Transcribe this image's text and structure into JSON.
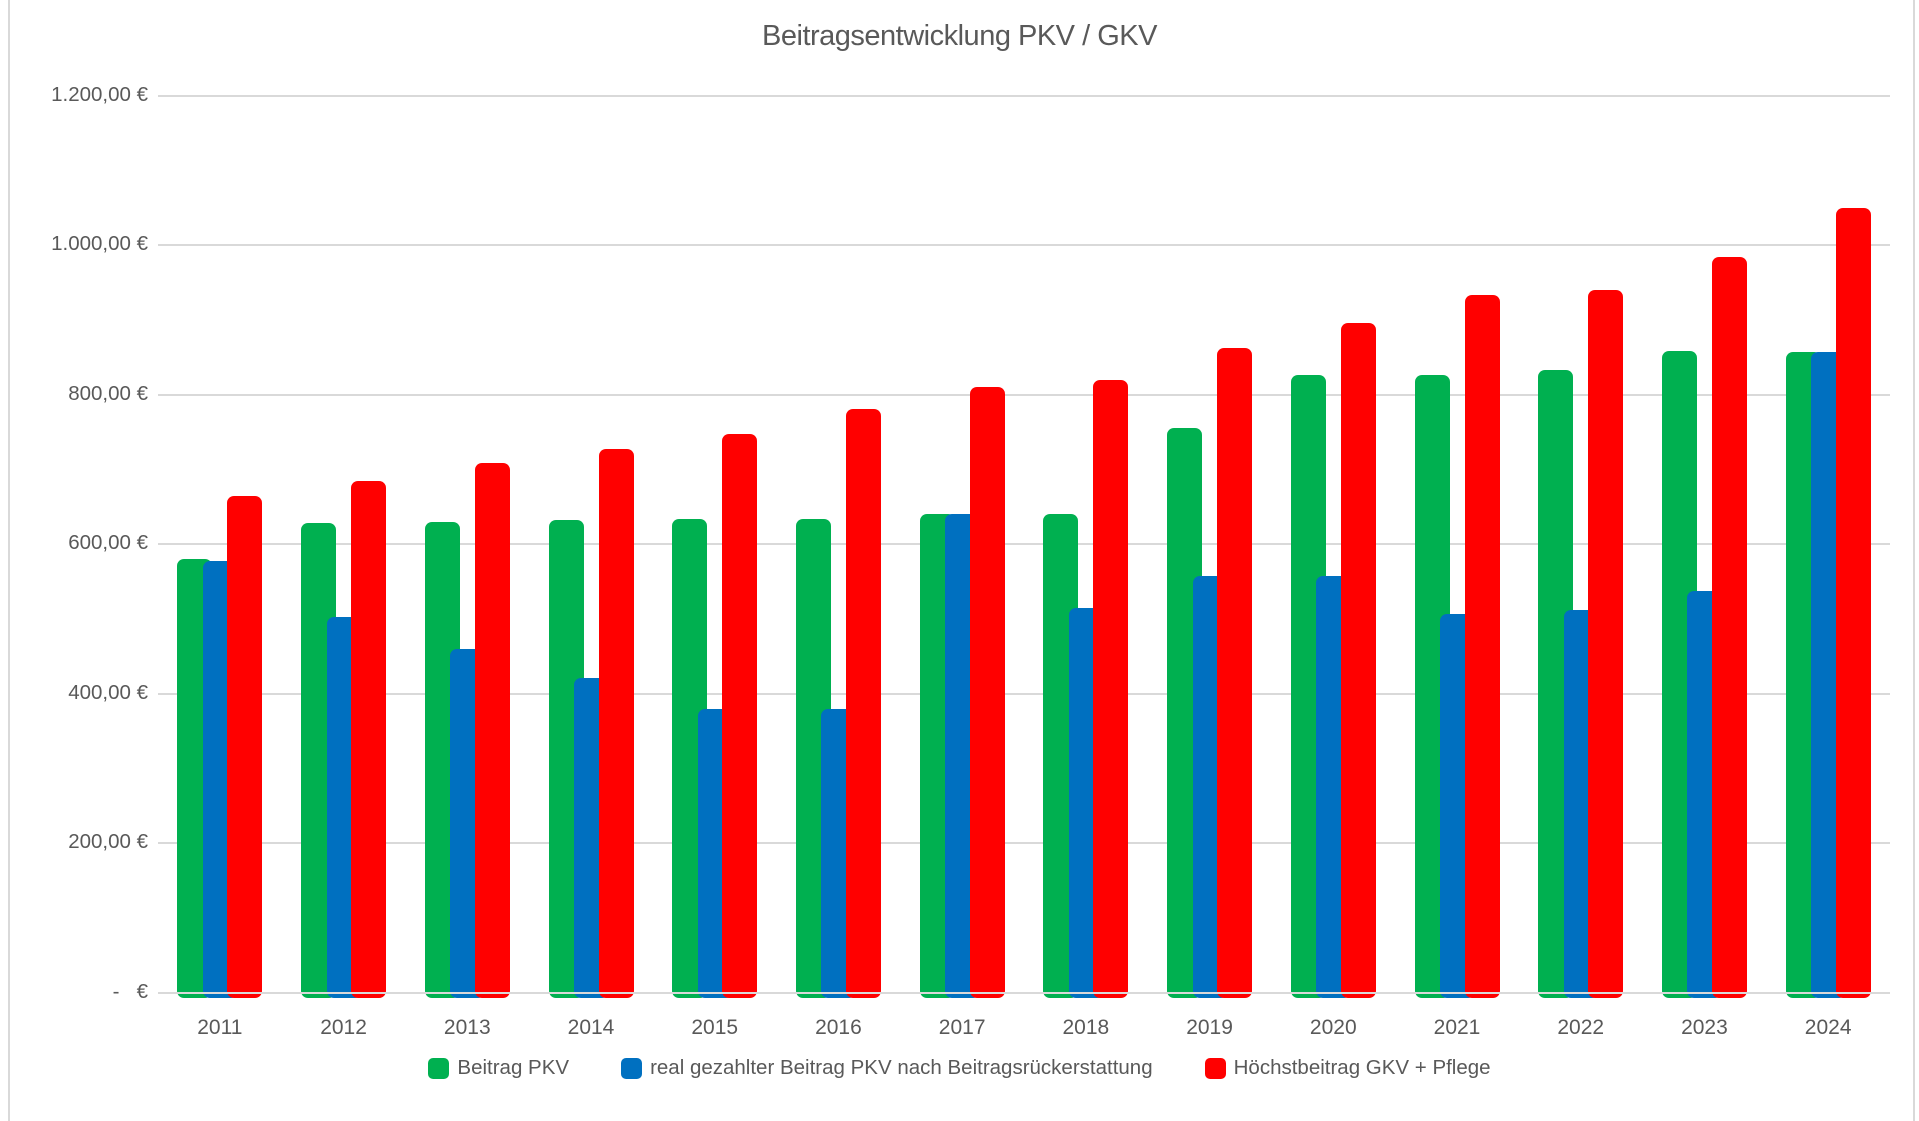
{
  "title": "Beitragsentwicklung PKV / GKV",
  "chart_data": {
    "type": "bar",
    "title": "Beitragsentwicklung PKV / GKV",
    "categories": [
      "2011",
      "2012",
      "2013",
      "2014",
      "2015",
      "2016",
      "2017",
      "2018",
      "2019",
      "2020",
      "2021",
      "2022",
      "2023",
      "2024"
    ],
    "series": [
      {
        "name": "Beitrag PKV",
        "color": "#00B050",
        "values": [
          580,
          628,
          630,
          632,
          634,
          634,
          640,
          640,
          755,
          827,
          827,
          833,
          858,
          857
        ]
      },
      {
        "name": "real gezahlter Beitrag PKV nach Beitragsrückerstattung",
        "color": "#0070C0",
        "values": [
          578,
          503,
          460,
          421,
          380,
          380,
          640,
          515,
          557,
          558,
          506,
          512,
          537,
          857
        ]
      },
      {
        "name": "Höchstbeitrag GKV + Pflege",
        "color": "#FF0000",
        "values": [
          664,
          684,
          708,
          727,
          748,
          781,
          810,
          819,
          863,
          896,
          934,
          940,
          984,
          1050
        ]
      }
    ],
    "xlabel": "",
    "ylabel": "",
    "ylim": [
      0,
      1200
    ],
    "ytick_step": 200,
    "ytick_labels": [
      "-   €",
      "200,00 €",
      "400,00 €",
      "600,00 €",
      "800,00 €",
      "1.000,00 €",
      "1.200,00 €"
    ],
    "grid": true,
    "legend_position": "bottom",
    "currency_format": "de-DE, e.g. 1.200,00 €"
  },
  "colors": {
    "text": "#595959",
    "gridline": "#d9d9d9",
    "background": "#ffffff",
    "series_green": "#00B050",
    "series_blue": "#0070C0",
    "series_red": "#FF0000"
  }
}
